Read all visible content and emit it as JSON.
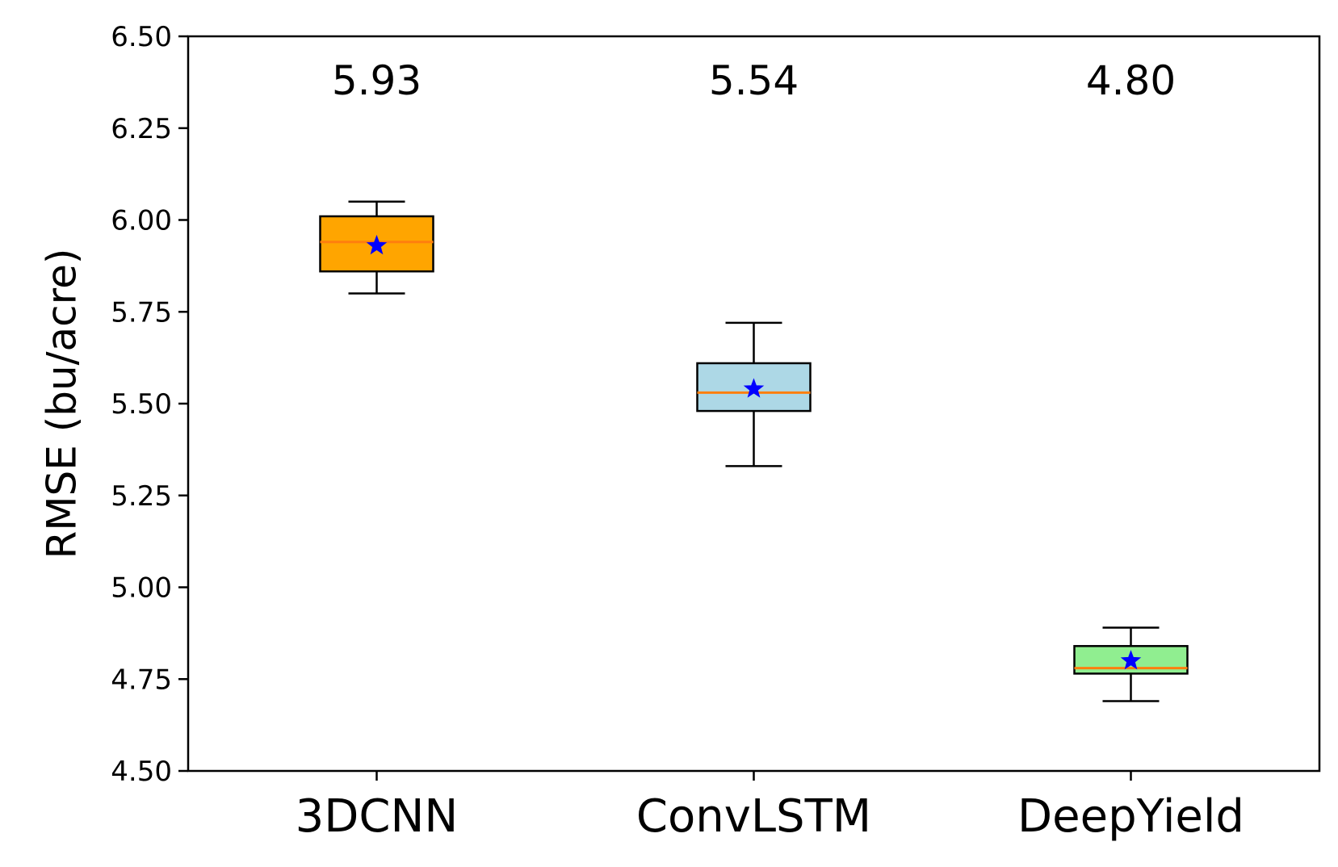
{
  "chart_data": {
    "type": "box",
    "title": "",
    "xlabel": "",
    "ylabel": "RMSE (bu/acre)",
    "ylim": [
      4.5,
      6.5
    ],
    "yticks": [
      "4.50",
      "4.75",
      "5.00",
      "5.25",
      "5.50",
      "5.75",
      "6.00",
      "6.25",
      "6.50"
    ],
    "grid": false,
    "categories": [
      "3DCNN",
      "ConvLSTM",
      "DeepYield"
    ],
    "boxes": [
      {
        "category": "3DCNN",
        "whisker_low": 5.8,
        "q1": 5.86,
        "median": 5.94,
        "q3": 6.01,
        "whisker_high": 6.05,
        "mean": 5.93,
        "mean_label": "5.93",
        "fill": "#ffa500"
      },
      {
        "category": "ConvLSTM",
        "whisker_low": 5.33,
        "q1": 5.48,
        "median": 5.53,
        "q3": 5.61,
        "whisker_high": 5.72,
        "mean": 5.54,
        "mean_label": "5.54",
        "fill": "#add8e6"
      },
      {
        "category": "DeepYield",
        "whisker_low": 4.69,
        "q1": 4.765,
        "median": 4.78,
        "q3": 4.84,
        "whisker_high": 4.89,
        "mean": 4.8,
        "mean_label": "4.80",
        "fill": "#90ee90"
      }
    ],
    "median_color": "#ff7f0e",
    "mean_marker": "star",
    "mean_color": "#0000ff"
  }
}
